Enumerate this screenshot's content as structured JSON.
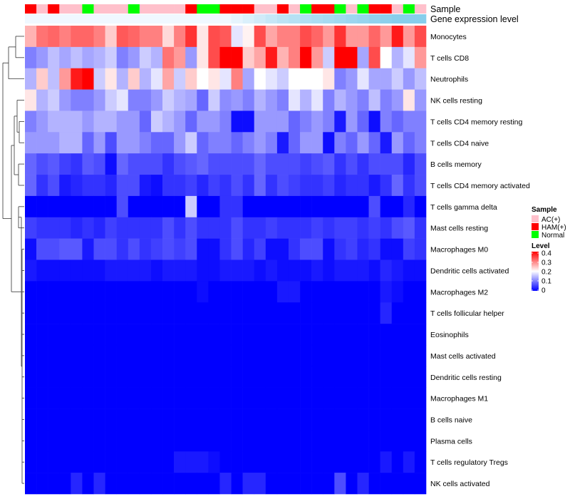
{
  "chart_data": {
    "type": "heatmap",
    "annotation_labels": {
      "sample_track": "Sample",
      "expression_track": "Gene expression level"
    },
    "sample_groups": [
      "HAM(+)",
      "AC(+)",
      "HAM(+)",
      "AC(+)",
      "AC(+)",
      "Normal",
      "AC(+)",
      "AC(+)",
      "AC(+)",
      "Normal",
      "AC(+)",
      "AC(+)",
      "AC(+)",
      "AC(+)",
      "HAM(+)",
      "Normal",
      "Normal",
      "HAM(+)",
      "HAM(+)",
      "HAM(+)",
      "AC(+)",
      "AC(+)",
      "HAM(+)",
      "AC(+)",
      "Normal",
      "HAM(+)",
      "HAM(+)",
      "Normal",
      "AC(+)",
      "Normal",
      "HAM(+)",
      "HAM(+)",
      "AC(+)",
      "Normal",
      "AC(+)"
    ],
    "rows": [
      "Monocytes",
      "T cells CD8",
      "Neutrophils",
      "NK cells resting",
      "T cells CD4 memory resting",
      "T cells CD4 naive",
      "B cells memory",
      "T cells CD4 memory activated",
      "T cells gamma delta",
      "Mast cells resting",
      "Macrophages M0",
      "Dendritic cells activated",
      "Macrophages M2",
      "T cells follicular helper",
      "Eosinophils",
      "Mast cells activated",
      "Dendritic cells resting",
      "Macrophages M1",
      "B cells naive",
      "Plasma cells",
      "T cells regulatory  Tregs",
      "NK cells activated"
    ],
    "values": [
      [
        0.26,
        0.31,
        0.32,
        0.3,
        0.32,
        0.32,
        0.3,
        0.24,
        0.33,
        0.32,
        0.3,
        0.3,
        0.23,
        0.3,
        0.36,
        0.22,
        0.34,
        0.33,
        0.18,
        0.21,
        0.34,
        0.27,
        0.3,
        0.3,
        0.34,
        0.32,
        0.28,
        0.36,
        0.28,
        0.28,
        0.32,
        0.28,
        0.38,
        0.28,
        0.34
      ],
      [
        0.1,
        0.12,
        0.15,
        0.13,
        0.15,
        0.13,
        0.14,
        0.16,
        0.1,
        0.12,
        0.16,
        0.14,
        0.31,
        0.28,
        0.12,
        0.22,
        0.34,
        0.4,
        0.4,
        0.24,
        0.27,
        0.38,
        0.26,
        0.3,
        0.4,
        0.28,
        0.16,
        0.4,
        0.4,
        0.13,
        0.34,
        0.2,
        0.14,
        0.18,
        0.28
      ],
      [
        0.14,
        0.24,
        0.15,
        0.28,
        0.38,
        0.4,
        0.16,
        0.22,
        0.14,
        0.24,
        0.14,
        0.18,
        0.27,
        0.16,
        0.24,
        0.2,
        0.22,
        0.18,
        0.3,
        0.13,
        0.2,
        0.18,
        0.16,
        0.2,
        0.2,
        0.2,
        0.22,
        0.1,
        0.12,
        0.18,
        0.13,
        0.13,
        0.16,
        0.12,
        0.15
      ],
      [
        0.22,
        0.14,
        0.16,
        0.12,
        0.1,
        0.1,
        0.12,
        0.16,
        0.18,
        0.1,
        0.1,
        0.12,
        0.16,
        0.14,
        0.13,
        0.08,
        0.16,
        0.11,
        0.12,
        0.1,
        0.14,
        0.12,
        0.1,
        0.18,
        0.14,
        0.18,
        0.1,
        0.14,
        0.12,
        0.1,
        0.15,
        0.1,
        0.12,
        0.22,
        0.12
      ],
      [
        0.1,
        0.12,
        0.14,
        0.14,
        0.14,
        0.12,
        0.14,
        0.14,
        0.12,
        0.12,
        0.08,
        0.16,
        0.14,
        0.12,
        0.08,
        0.12,
        0.12,
        0.1,
        0.01,
        0.01,
        0.12,
        0.12,
        0.12,
        0.08,
        0.1,
        0.12,
        0.1,
        0.02,
        0.12,
        0.08,
        0.01,
        0.1,
        0.08,
        0.1,
        0.1
      ],
      [
        0.12,
        0.12,
        0.12,
        0.14,
        0.14,
        0.08,
        0.12,
        0.06,
        0.12,
        0.12,
        0.1,
        0.08,
        0.08,
        0.12,
        0.16,
        0.08,
        0.1,
        0.1,
        0.08,
        0.1,
        0.12,
        0.1,
        0.02,
        0.08,
        0.12,
        0.12,
        0.01,
        0.1,
        0.08,
        0.12,
        0.08,
        0.02,
        0.12,
        0.08,
        0.1
      ],
      [
        0.08,
        0.06,
        0.07,
        0.05,
        0.04,
        0.07,
        0.06,
        0.01,
        0.08,
        0.06,
        0.06,
        0.06,
        0.04,
        0.06,
        0.07,
        0.08,
        0.06,
        0.06,
        0.06,
        0.06,
        0.08,
        0.06,
        0.06,
        0.06,
        0.05,
        0.06,
        0.07,
        0.04,
        0.06,
        0.04,
        0.06,
        0.06,
        0.06,
        0.03,
        0.06
      ],
      [
        0.08,
        0.04,
        0.06,
        0.02,
        0.03,
        0.04,
        0.04,
        0.03,
        0.06,
        0.06,
        0.02,
        0.01,
        0.04,
        0.04,
        0.05,
        0.03,
        0.05,
        0.04,
        0.06,
        0.04,
        0.08,
        0.04,
        0.06,
        0.05,
        0.04,
        0.04,
        0.05,
        0.03,
        0.04,
        0.04,
        0.02,
        0.04,
        0.08,
        0.04,
        0.06
      ],
      [
        0.0,
        0.0,
        0.0,
        0.0,
        0.0,
        0.0,
        0.0,
        0.0,
        0.06,
        0.0,
        0.0,
        0.0,
        0.0,
        0.0,
        0.16,
        0.0,
        0.0,
        0.04,
        0.04,
        0.0,
        0.0,
        0.0,
        0.0,
        0.0,
        0.0,
        0.0,
        0.0,
        0.0,
        0.0,
        0.0,
        0.06,
        0.0,
        0.0,
        0.03,
        0.0
      ],
      [
        0.05,
        0.04,
        0.04,
        0.04,
        0.03,
        0.04,
        0.03,
        0.05,
        0.04,
        0.04,
        0.04,
        0.04,
        0.06,
        0.04,
        0.06,
        0.04,
        0.04,
        0.04,
        0.06,
        0.04,
        0.04,
        0.05,
        0.04,
        0.04,
        0.04,
        0.05,
        0.04,
        0.05,
        0.05,
        0.04,
        0.05,
        0.04,
        0.06,
        0.07,
        0.04
      ],
      [
        0.01,
        0.06,
        0.06,
        0.07,
        0.07,
        0.02,
        0.06,
        0.06,
        0.04,
        0.06,
        0.04,
        0.05,
        0.06,
        0.05,
        0.06,
        0.01,
        0.01,
        0.04,
        0.06,
        0.03,
        0.05,
        0.01,
        0.01,
        0.04,
        0.06,
        0.06,
        0.01,
        0.04,
        0.05,
        0.03,
        0.04,
        0.01,
        0.01,
        0.05,
        0.04
      ],
      [
        0.02,
        0.01,
        0.01,
        0.01,
        0.01,
        0.01,
        0.01,
        0.02,
        0.02,
        0.02,
        0.02,
        0.01,
        0.02,
        0.02,
        0.02,
        0.01,
        0.01,
        0.02,
        0.02,
        0.02,
        0.01,
        0.02,
        0.01,
        0.01,
        0.01,
        0.02,
        0.01,
        0.02,
        0.02,
        0.02,
        0.01,
        0.03,
        0.02,
        0.01,
        0.01
      ],
      [
        0.0,
        0.0,
        0.0,
        0.0,
        0.0,
        0.0,
        0.0,
        0.0,
        0.0,
        0.0,
        0.0,
        0.0,
        0.0,
        0.0,
        0.0,
        0.01,
        0.0,
        0.0,
        0.0,
        0.0,
        0.0,
        0.0,
        0.02,
        0.02,
        0.0,
        0.0,
        0.0,
        0.0,
        0.0,
        0.0,
        0.0,
        0.02,
        0.01,
        0.0,
        0.0
      ],
      [
        0.0,
        0.0,
        0.0,
        0.0,
        0.0,
        0.0,
        0.0,
        0.0,
        0.0,
        0.0,
        0.0,
        0.0,
        0.0,
        0.0,
        0.0,
        0.0,
        0.0,
        0.0,
        0.0,
        0.0,
        0.0,
        0.0,
        0.0,
        0.0,
        0.0,
        0.0,
        0.0,
        0.0,
        0.0,
        0.0,
        0.0,
        0.03,
        0.0,
        0.0,
        0.0
      ],
      [
        0.0,
        0.0,
        0.0,
        0.0,
        0.0,
        0.0,
        0.0,
        0.0,
        0.0,
        0.0,
        0.0,
        0.0,
        0.0,
        0.0,
        0.0,
        0.0,
        0.0,
        0.0,
        0.0,
        0.0,
        0.0,
        0.0,
        0.0,
        0.0,
        0.0,
        0.0,
        0.0,
        0.0,
        0.0,
        0.0,
        0.0,
        0.0,
        0.0,
        0.0,
        0.0
      ],
      [
        0.0,
        0.0,
        0.0,
        0.0,
        0.0,
        0.0,
        0.0,
        0.0,
        0.0,
        0.0,
        0.0,
        0.0,
        0.0,
        0.0,
        0.0,
        0.0,
        0.0,
        0.0,
        0.0,
        0.0,
        0.0,
        0.0,
        0.0,
        0.0,
        0.0,
        0.0,
        0.0,
        0.0,
        0.0,
        0.0,
        0.0,
        0.0,
        0.0,
        0.0,
        0.0
      ],
      [
        0.0,
        0.0,
        0.0,
        0.0,
        0.0,
        0.0,
        0.0,
        0.0,
        0.0,
        0.0,
        0.0,
        0.0,
        0.0,
        0.0,
        0.0,
        0.0,
        0.0,
        0.0,
        0.0,
        0.0,
        0.0,
        0.0,
        0.0,
        0.0,
        0.0,
        0.0,
        0.0,
        0.0,
        0.0,
        0.0,
        0.0,
        0.0,
        0.0,
        0.0,
        0.0
      ],
      [
        0.0,
        0.0,
        0.0,
        0.0,
        0.0,
        0.0,
        0.0,
        0.0,
        0.0,
        0.0,
        0.0,
        0.0,
        0.0,
        0.0,
        0.0,
        0.0,
        0.0,
        0.0,
        0.0,
        0.0,
        0.0,
        0.0,
        0.0,
        0.0,
        0.0,
        0.0,
        0.0,
        0.0,
        0.0,
        0.0,
        0.0,
        0.0,
        0.0,
        0.0,
        0.0
      ],
      [
        0.0,
        0.0,
        0.0,
        0.0,
        0.0,
        0.0,
        0.0,
        0.0,
        0.0,
        0.0,
        0.0,
        0.0,
        0.0,
        0.0,
        0.0,
        0.0,
        0.0,
        0.0,
        0.0,
        0.0,
        0.0,
        0.0,
        0.0,
        0.0,
        0.0,
        0.0,
        0.0,
        0.0,
        0.0,
        0.0,
        0.0,
        0.0,
        0.0,
        0.0,
        0.0
      ],
      [
        0.0,
        0.0,
        0.0,
        0.0,
        0.0,
        0.0,
        0.0,
        0.0,
        0.0,
        0.0,
        0.0,
        0.0,
        0.0,
        0.0,
        0.0,
        0.0,
        0.0,
        0.0,
        0.0,
        0.0,
        0.0,
        0.0,
        0.0,
        0.0,
        0.0,
        0.0,
        0.0,
        0.0,
        0.0,
        0.0,
        0.0,
        0.0,
        0.0,
        0.0,
        0.0
      ],
      [
        0.0,
        0.0,
        0.0,
        0.0,
        0.0,
        0.0,
        0.0,
        0.0,
        0.0,
        0.0,
        0.0,
        0.0,
        0.0,
        0.02,
        0.02,
        0.02,
        0.01,
        0.0,
        0.0,
        0.0,
        0.0,
        0.0,
        0.0,
        0.0,
        0.0,
        0.0,
        0.0,
        0.0,
        0.0,
        0.0,
        0.0,
        0.02,
        0.0,
        0.02,
        0.0
      ],
      [
        0.0,
        0.0,
        0.0,
        0.0,
        0.03,
        0.0,
        0.03,
        0.0,
        0.0,
        0.0,
        0.0,
        0.0,
        0.0,
        0.0,
        0.0,
        0.0,
        0.0,
        0.03,
        0.0,
        0.03,
        0.03,
        0.0,
        0.0,
        0.0,
        0.0,
        0.0,
        0.0,
        0.06,
        0.0,
        0.03,
        0.0,
        0.0,
        0.0,
        0.0,
        0.0
      ]
    ],
    "colorscale": {
      "min": 0,
      "mid": 0.2,
      "max": 0.4,
      "low_color": "#0000ff",
      "mid_color": "#ffffff",
      "high_color": "#ff0000"
    },
    "legend": {
      "sample_title": "Sample",
      "sample_entries": [
        {
          "label": "AC(+)",
          "color": "#ffc0cb"
        },
        {
          "label": "HAM(+)",
          "color": "#ff0000"
        },
        {
          "label": "Normal",
          "color": "#00ff00"
        }
      ],
      "level_title": "Level",
      "level_ticks": [
        "0.4",
        "0.3",
        "0.2",
        "0.1",
        "0"
      ]
    },
    "expression_track_color": "#87ceeb",
    "expression_track_values": [
      0.0,
      0.0,
      0.0,
      0.0,
      0.0,
      0.0,
      0.0,
      0.0,
      0.0,
      0.0,
      0.0,
      0.0,
      0.0,
      0.0,
      0.0,
      0.0,
      0.0,
      0.0,
      0.1,
      0.2,
      0.3,
      0.4,
      0.5,
      0.55,
      0.6,
      0.65,
      0.7,
      0.75,
      0.8,
      0.85,
      0.9,
      0.95,
      1.0,
      1.0,
      1.0
    ]
  }
}
